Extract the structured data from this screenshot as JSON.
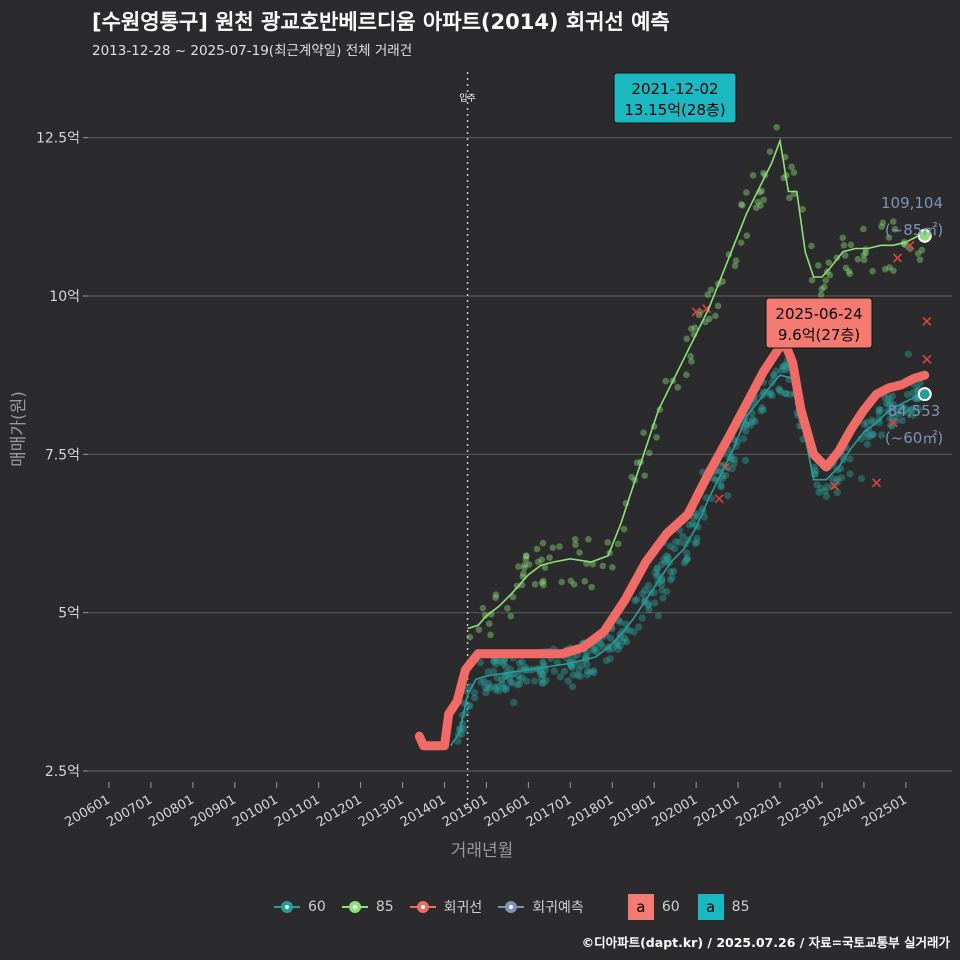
{
  "title": "[수원영통구] 원천 광교호반베르디움 아파트(2014) 회귀선 예측",
  "subtitle": "2013-12-28 ~ 2025-07-19(최근계약일) 전체 거래건",
  "footer": "©디아파트(dapt.kr) / 2025.07.26 / 자료=국토교통부 실거래가",
  "colors": {
    "background": "#2b2b2d",
    "grid": "#58585b",
    "series60": "#2a9d9a",
    "series85": "#8fe07a",
    "regression": "#f06a66",
    "forecast": "#7d93b8",
    "label60": "#1ab8c0",
    "labelReg": "#f47a72"
  },
  "legend": {
    "items": [
      {
        "key": "60",
        "label": "60"
      },
      {
        "key": "85",
        "label": "85"
      },
      {
        "key": "reg",
        "label": "회귀선"
      },
      {
        "key": "fc",
        "label": "회귀예측"
      }
    ],
    "boxes": [
      {
        "letter": "a",
        "label": "60"
      },
      {
        "letter": "a",
        "label": "85"
      }
    ]
  },
  "chart_data": {
    "type": "line",
    "title": "[수원영통구] 원천 광교호반베르디움 아파트(2014) 회귀선 예측",
    "xlabel": "거래년월",
    "ylabel": "매매가(원)",
    "x_ticks": [
      "200601",
      "200701",
      "200801",
      "200901",
      "201001",
      "201101",
      "201201",
      "201301",
      "201401",
      "201501",
      "201601",
      "201701",
      "201801",
      "201901",
      "202001",
      "202101",
      "202201",
      "202301",
      "202401",
      "202501"
    ],
    "xlim": [
      2005.5,
      2026.1
    ],
    "ylim": [
      2.2,
      13.6
    ],
    "y_ticks": [
      {
        "value": 2.5,
        "label": "2.5억"
      },
      {
        "value": 5,
        "label": "5억"
      },
      {
        "value": 7.5,
        "label": "7.5억"
      },
      {
        "value": 10,
        "label": "10억"
      },
      {
        "value": 12.5,
        "label": "12.5억"
      }
    ],
    "vline": {
      "x": 2014.55,
      "label": "입주"
    },
    "series": [
      {
        "name": "60",
        "type": "line",
        "x": [
          2014.15,
          2014.35,
          2014.55,
          2014.75,
          2015.0,
          2015.5,
          2016.0,
          2016.5,
          2017.0,
          2017.3,
          2017.6,
          2017.9,
          2018.2,
          2018.5,
          2018.8,
          2019.1,
          2019.4,
          2019.7,
          2020.0,
          2020.3,
          2020.6,
          2020.9,
          2021.2,
          2021.5,
          2021.8,
          2022.0,
          2022.3,
          2022.5,
          2022.8,
          2023.1,
          2023.4,
          2023.7,
          2024.0,
          2024.3,
          2024.6,
          2024.9,
          2025.2,
          2025.45
        ],
        "values": [
          2.9,
          3.1,
          3.7,
          3.95,
          4.0,
          4.05,
          4.1,
          4.15,
          4.2,
          4.25,
          4.3,
          4.45,
          4.65,
          4.9,
          5.2,
          5.5,
          5.8,
          6.0,
          6.35,
          6.8,
          7.2,
          7.6,
          8.1,
          8.35,
          8.6,
          8.75,
          8.7,
          8.1,
          7.1,
          7.1,
          7.3,
          7.6,
          7.85,
          8.0,
          8.2,
          8.3,
          8.4,
          8.45
        ]
      },
      {
        "name": "85",
        "type": "line",
        "x": [
          2014.55,
          2014.8,
          2015.0,
          2015.3,
          2015.6,
          2016.0,
          2016.3,
          2016.6,
          2017.0,
          2017.5,
          2017.9,
          2018.2,
          2018.5,
          2018.8,
          2019.1,
          2019.4,
          2019.7,
          2020.0,
          2020.3,
          2020.6,
          2020.9,
          2021.2,
          2021.5,
          2021.8,
          2022.0,
          2022.2,
          2022.4,
          2022.6,
          2022.8,
          2023.0,
          2023.2,
          2023.5,
          2023.8,
          2024.1,
          2024.4,
          2024.7,
          2025.0,
          2025.3,
          2025.45
        ],
        "values": [
          4.75,
          4.8,
          4.95,
          5.1,
          5.3,
          5.6,
          5.75,
          5.8,
          5.85,
          5.8,
          5.9,
          6.4,
          7.0,
          7.6,
          8.2,
          8.6,
          9.0,
          9.4,
          9.8,
          10.3,
          10.8,
          11.3,
          11.7,
          12.1,
          12.45,
          11.65,
          11.65,
          10.7,
          10.3,
          10.3,
          10.45,
          10.7,
          10.75,
          10.75,
          10.8,
          10.8,
          10.85,
          10.95,
          10.95
        ]
      },
      {
        "name": "회귀선",
        "type": "line",
        "x": [
          2013.4,
          2013.5,
          2014.0,
          2014.1,
          2014.3,
          2014.5,
          2014.8,
          2015.3,
          2015.8,
          2016.3,
          2016.8,
          2017.3,
          2017.8,
          2018.3,
          2018.8,
          2019.3,
          2019.8,
          2020.3,
          2020.8,
          2021.2,
          2021.6,
          2022.0,
          2022.15,
          2022.3,
          2022.5,
          2022.8,
          2023.1,
          2023.4,
          2023.7,
          2024.0,
          2024.3,
          2024.6,
          2024.9,
          2025.2,
          2025.45
        ],
        "values": [
          3.05,
          2.9,
          2.9,
          3.4,
          3.6,
          4.1,
          4.35,
          4.35,
          4.35,
          4.35,
          4.35,
          4.45,
          4.7,
          5.2,
          5.8,
          6.25,
          6.55,
          7.2,
          7.8,
          8.3,
          8.8,
          9.2,
          9.2,
          8.95,
          8.2,
          7.5,
          7.3,
          7.55,
          7.9,
          8.2,
          8.45,
          8.55,
          8.6,
          8.7,
          8.75
        ]
      }
    ],
    "scatter_note": "individual transactions (~60 and ~85) shown as translucent dots",
    "annotations": [
      {
        "kind": "box",
        "date": "2021-12-02",
        "price": "13.15억(28층)",
        "at_x": 2021.92,
        "at_y": 13.15
      },
      {
        "kind": "box",
        "date": "2025-06-24",
        "price": "9.6억(27층)",
        "at_x": 2025.47,
        "at_y": 9.6
      },
      {
        "kind": "forecast",
        "value": "109,104",
        "area": "(~85㎡)",
        "at_x": 2025.6,
        "at_y": 10.95
      },
      {
        "kind": "forecast",
        "value": "84,553",
        "area": "(~60㎡)",
        "at_x": 2025.6,
        "at_y": 8.45
      }
    ]
  }
}
